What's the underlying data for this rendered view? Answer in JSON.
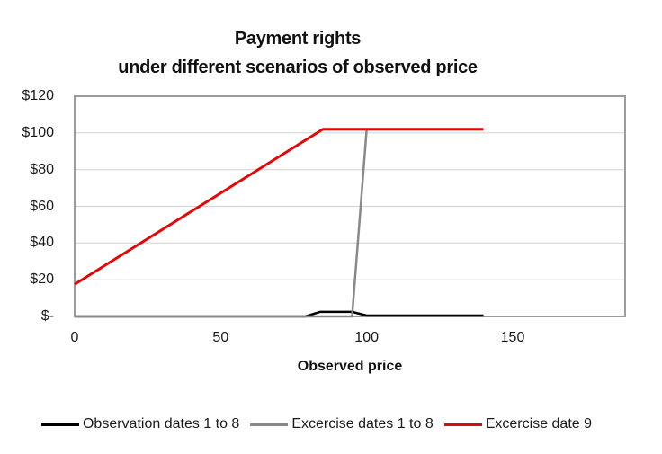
{
  "chart_data": {
    "type": "line",
    "title_line1": "Payment rights",
    "title_line2": "under different scenarios of observed price",
    "xlabel": "Observed price",
    "xlim": [
      0,
      188.5
    ],
    "ylim": [
      0,
      120
    ],
    "grid": "horizontal-only",
    "legend_position": "bottom",
    "x_ticks": [
      {
        "value": 0,
        "label": "0"
      },
      {
        "value": 50,
        "label": "50"
      },
      {
        "value": 100,
        "label": "100"
      },
      {
        "value": 150,
        "label": "150"
      }
    ],
    "y_ticks": [
      {
        "value": 0,
        "label": "$-"
      },
      {
        "value": 20,
        "label": "$20"
      },
      {
        "value": 40,
        "label": "$40"
      },
      {
        "value": 60,
        "label": "$60"
      },
      {
        "value": 80,
        "label": "$80"
      },
      {
        "value": 100,
        "label": "$100"
      },
      {
        "value": 120,
        "label": "$120"
      }
    ],
    "series": [
      {
        "name": "Observation dates 1 to 8",
        "color": "#000000",
        "width": 2.5,
        "points": [
          [
            0,
            0
          ],
          [
            79,
            0
          ],
          [
            84,
            2.5
          ],
          [
            95,
            2.5
          ],
          [
            100,
            0.5
          ],
          [
            140,
            0.5
          ]
        ]
      },
      {
        "name": "Excercise dates 1 to 8",
        "color": "#898989",
        "width": 2.5,
        "points": [
          [
            0,
            0
          ],
          [
            95,
            0
          ],
          [
            100,
            102
          ],
          [
            140,
            102
          ]
        ]
      },
      {
        "name": "Excercise date 9",
        "color": "#dc0a0a",
        "width": 3,
        "points": [
          [
            0,
            17.5
          ],
          [
            85,
            102
          ],
          [
            140,
            102
          ]
        ]
      }
    ],
    "colors": {
      "axis_border": "#9c9c9c",
      "gridline": "#d6d6d6",
      "text": "#1a1a1a"
    }
  }
}
